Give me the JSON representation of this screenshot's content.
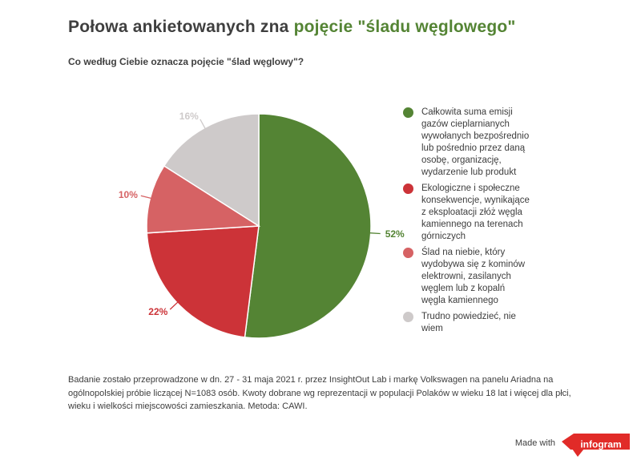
{
  "header": {
    "title_prefix": "Połowa ankietowanych zna ",
    "title_highlight": "pojęcie \"śladu węglowego\""
  },
  "chart_data": {
    "type": "pie",
    "title": "Co według Ciebie oznacza pojęcie \"ślad węglowy\"?",
    "unit": "%",
    "start_angle_deg": 0,
    "direction": "clockwise",
    "legend_position": "right",
    "slices": [
      {
        "label": "Całkowita suma emisji gazów cieplarnianych wywołanych bezpośrednio lub pośrednio przez daną osobę, organizację, wydarzenie lub produkt",
        "value": 52,
        "display": "52%",
        "color": "#548434"
      },
      {
        "label": "Ekologiczne i społeczne konsekwencje, wynikające z eksploatacji złóż węgla kamiennego na terenach górniczych",
        "value": 22,
        "display": "22%",
        "color": "#cc3338"
      },
      {
        "label": "Ślad na niebie, który wydobywa się z kominów elektrowni, zasilanych węglem lub z kopalń węgla kamiennego",
        "value": 10,
        "display": "10%",
        "color": "#d66264"
      },
      {
        "label": "Trudno powiedzieć, nie wiem",
        "value": 16,
        "display": "16%",
        "color": "#cecaca"
      }
    ]
  },
  "footer": {
    "note": "Badanie zostało przeprowadzone w dn. 27 - 31 maja 2021 r. przez InsightOut Lab i markę Volkswagen na panelu Ariadna na ogólnopolskiej próbie liczącej N=1083 osób. Kwoty dobrane wg reprezentacji w populacji Polaków w wieku 18 lat i więcej dla płci, wieku i wielkości miejscowości zamieszkania. Metoda: CAWI."
  },
  "branding": {
    "made_with": "Made with",
    "logo_text": "infogram",
    "logo_color": "#e12b28"
  },
  "colors": {
    "title_text": "#3f3f3f",
    "title_highlight": "#548434",
    "body_text": "#3d3d3d",
    "background": "#ffffff"
  }
}
